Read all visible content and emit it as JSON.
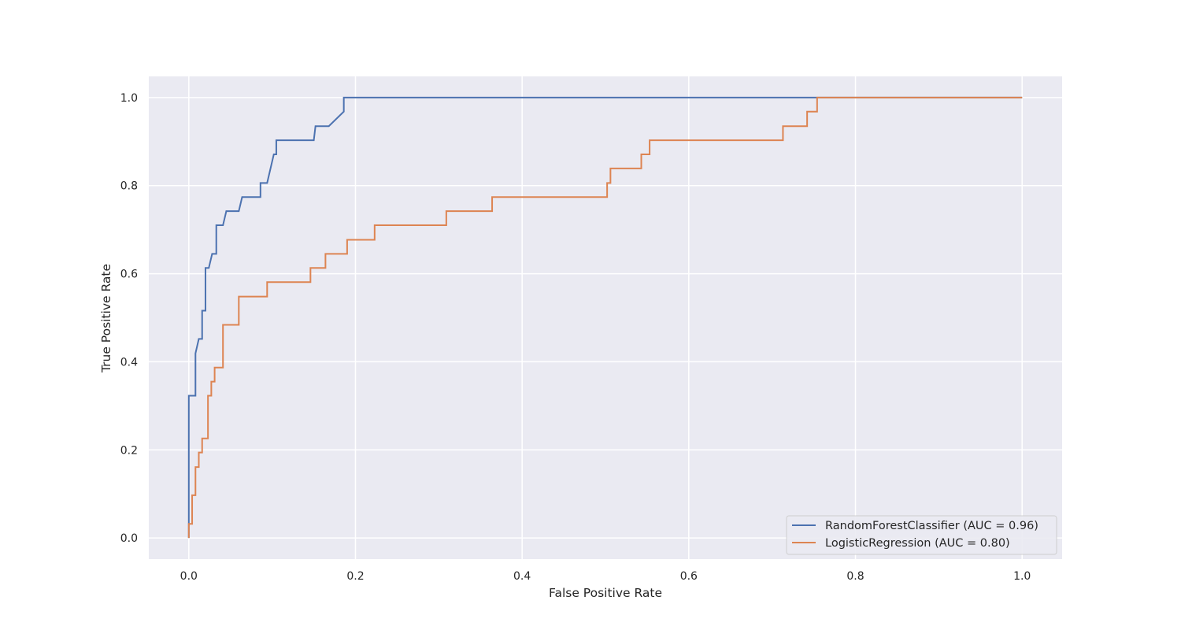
{
  "chart_data": {
    "type": "line",
    "title": "",
    "xlabel": "False Positive Rate",
    "ylabel": "True Positive Rate",
    "xlim": [
      -0.048,
      1.048
    ],
    "ylim": [
      -0.048,
      1.048
    ],
    "xticks": [
      0.0,
      0.2,
      0.4,
      0.6,
      0.8,
      1.0
    ],
    "yticks": [
      0.0,
      0.2,
      0.4,
      0.6,
      0.8,
      1.0
    ],
    "xtick_labels": [
      "0.0",
      "0.2",
      "0.4",
      "0.6",
      "0.8",
      "1.0"
    ],
    "ytick_labels": [
      "0.0",
      "0.2",
      "0.4",
      "0.6",
      "0.8",
      "1.0"
    ],
    "grid": true,
    "background": "#eaeaf2",
    "legend_position": "lower-right",
    "series": [
      {
        "name": "RandomForestClassifier (AUC = 0.96)",
        "color": "#4c72b0",
        "x": [
          0,
          0,
          0,
          0.008,
          0.008,
          0.012,
          0.016,
          0.016,
          0.02,
          0.02,
          0.024,
          0.028,
          0.033,
          0.033,
          0.041,
          0.045,
          0.06,
          0.064,
          0.086,
          0.086,
          0.094,
          0.102,
          0.105,
          0.105,
          0.15,
          0.152,
          0.168,
          0.186,
          0.186,
          1.0
        ],
        "y": [
          0,
          0.032,
          0.323,
          0.323,
          0.419,
          0.452,
          0.452,
          0.516,
          0.516,
          0.613,
          0.613,
          0.645,
          0.645,
          0.71,
          0.71,
          0.742,
          0.742,
          0.774,
          0.774,
          0.806,
          0.806,
          0.871,
          0.871,
          0.903,
          0.903,
          0.935,
          0.935,
          0.968,
          1.0,
          1.0
        ]
      },
      {
        "name": "LogisticRegression (AUC = 0.80)",
        "color": "#dd8452",
        "x": [
          0,
          0,
          0.004,
          0.004,
          0.008,
          0.008,
          0.012,
          0.012,
          0.016,
          0.016,
          0.023,
          0.023,
          0.027,
          0.027,
          0.031,
          0.031,
          0.041,
          0.041,
          0.06,
          0.06,
          0.094,
          0.094,
          0.146,
          0.146,
          0.164,
          0.164,
          0.19,
          0.19,
          0.223,
          0.223,
          0.309,
          0.309,
          0.364,
          0.364,
          0.502,
          0.502,
          0.506,
          0.506,
          0.543,
          0.543,
          0.553,
          0.553,
          0.713,
          0.713,
          0.742,
          0.742,
          0.754,
          0.754,
          1.0
        ],
        "y": [
          0,
          0.032,
          0.032,
          0.097,
          0.097,
          0.161,
          0.161,
          0.194,
          0.194,
          0.226,
          0.226,
          0.323,
          0.323,
          0.355,
          0.355,
          0.387,
          0.387,
          0.484,
          0.484,
          0.548,
          0.548,
          0.581,
          0.581,
          0.613,
          0.613,
          0.645,
          0.645,
          0.677,
          0.677,
          0.71,
          0.71,
          0.742,
          0.742,
          0.774,
          0.774,
          0.806,
          0.806,
          0.839,
          0.839,
          0.871,
          0.871,
          0.903,
          0.903,
          0.935,
          0.935,
          0.968,
          0.968,
          1.0,
          1.0
        ]
      }
    ]
  }
}
